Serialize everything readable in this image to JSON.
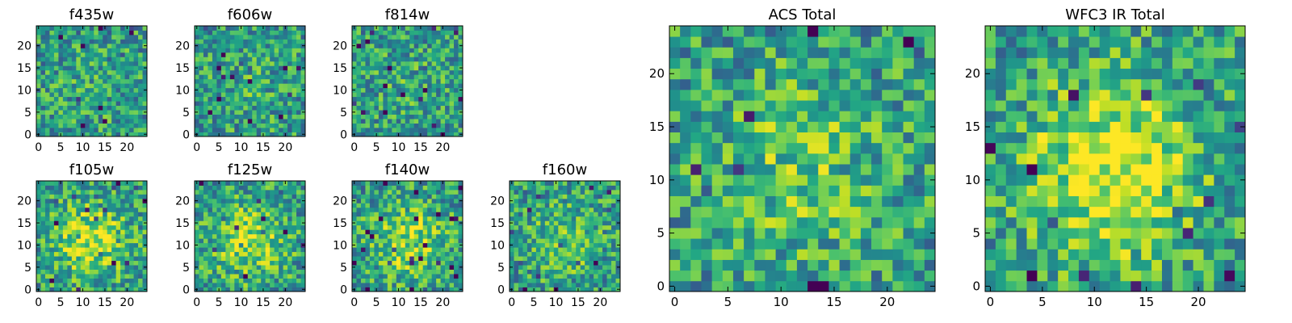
{
  "figure": {
    "colormap": "viridis",
    "panels": [
      {
        "key": "f435w",
        "title": "f435w",
        "size": "small",
        "x_ticks": [
          "0",
          "5",
          "10",
          "15",
          "20"
        ],
        "y_ticks": [
          "0",
          "5",
          "10",
          "15",
          "20"
        ],
        "seed": 11,
        "center_strength": 0.05
      },
      {
        "key": "f606w",
        "title": "f606w",
        "size": "small",
        "x_ticks": [
          "0",
          "5",
          "10",
          "15",
          "20"
        ],
        "y_ticks": [
          "0",
          "5",
          "10",
          "15",
          "20"
        ],
        "seed": 23,
        "center_strength": 0.07
      },
      {
        "key": "f814w",
        "title": "f814w",
        "size": "small",
        "x_ticks": [
          "0",
          "5",
          "10",
          "15",
          "20"
        ],
        "y_ticks": [
          "0",
          "5",
          "10",
          "15",
          "20"
        ],
        "seed": 37,
        "center_strength": 0.06
      },
      {
        "key": "f105w",
        "title": "f105w",
        "size": "small",
        "x_ticks": [
          "0",
          "5",
          "10",
          "15",
          "20"
        ],
        "y_ticks": [
          "0",
          "5",
          "10",
          "15",
          "20"
        ],
        "seed": 41,
        "center_strength": 0.35
      },
      {
        "key": "f125w",
        "title": "f125w",
        "size": "small",
        "x_ticks": [
          "0",
          "5",
          "10",
          "15",
          "20"
        ],
        "y_ticks": [
          "0",
          "5",
          "10",
          "15",
          "20"
        ],
        "seed": 53,
        "center_strength": 0.32
      },
      {
        "key": "f140w",
        "title": "f140w",
        "size": "small",
        "x_ticks": [
          "0",
          "5",
          "10",
          "15",
          "20"
        ],
        "y_ticks": [
          "0",
          "5",
          "10",
          "15",
          "20"
        ],
        "seed": 67,
        "center_strength": 0.3
      },
      {
        "key": "f160w",
        "title": "f160w",
        "size": "small",
        "x_ticks": [
          "0",
          "5",
          "10",
          "15",
          "20"
        ],
        "y_ticks": [
          "0",
          "5",
          "10",
          "15",
          "20"
        ],
        "seed": 79,
        "center_strength": 0.18
      },
      {
        "key": "acs_total",
        "title": "ACS Total",
        "size": "large",
        "x_ticks": [
          "0",
          "5",
          "10",
          "15",
          "20"
        ],
        "y_ticks": [
          "0",
          "5",
          "10",
          "15",
          "20"
        ],
        "seed": 97,
        "center_strength": 0.2
      },
      {
        "key": "wfc3_ir_total",
        "title": "WFC3 IR Total",
        "size": "large",
        "x_ticks": [
          "0",
          "5",
          "10",
          "15",
          "20"
        ],
        "y_ticks": [
          "0",
          "5",
          "10",
          "15",
          "20"
        ],
        "seed": 131,
        "center_strength": 0.45
      }
    ]
  },
  "chart_data": [
    {
      "type": "heatmap",
      "title": "f435w",
      "x_range": [
        0,
        24
      ],
      "y_range": [
        0,
        24
      ],
      "grid_size": [
        25,
        25
      ],
      "colormap": "viridis",
      "grid": false
    },
    {
      "type": "heatmap",
      "title": "f606w",
      "x_range": [
        0,
        24
      ],
      "y_range": [
        0,
        24
      ],
      "grid_size": [
        25,
        25
      ],
      "colormap": "viridis",
      "grid": false
    },
    {
      "type": "heatmap",
      "title": "f814w",
      "x_range": [
        0,
        24
      ],
      "y_range": [
        0,
        24
      ],
      "grid_size": [
        25,
        25
      ],
      "colormap": "viridis",
      "grid": false
    },
    {
      "type": "heatmap",
      "title": "f105w",
      "x_range": [
        0,
        24
      ],
      "y_range": [
        0,
        24
      ],
      "grid_size": [
        25,
        25
      ],
      "colormap": "viridis",
      "grid": false
    },
    {
      "type": "heatmap",
      "title": "f125w",
      "x_range": [
        0,
        24
      ],
      "y_range": [
        0,
        24
      ],
      "grid_size": [
        25,
        25
      ],
      "colormap": "viridis",
      "grid": false
    },
    {
      "type": "heatmap",
      "title": "f140w",
      "x_range": [
        0,
        24
      ],
      "y_range": [
        0,
        24
      ],
      "grid_size": [
        25,
        25
      ],
      "colormap": "viridis",
      "grid": false
    },
    {
      "type": "heatmap",
      "title": "f160w",
      "x_range": [
        0,
        24
      ],
      "y_range": [
        0,
        24
      ],
      "grid_size": [
        25,
        25
      ],
      "colormap": "viridis",
      "grid": false
    },
    {
      "type": "heatmap",
      "title": "ACS Total",
      "x_range": [
        0,
        24
      ],
      "y_range": [
        0,
        24
      ],
      "grid_size": [
        25,
        25
      ],
      "colormap": "viridis",
      "grid": false
    },
    {
      "type": "heatmap",
      "title": "WFC3 IR Total",
      "x_range": [
        0,
        24
      ],
      "y_range": [
        0,
        24
      ],
      "grid_size": [
        25,
        25
      ],
      "colormap": "viridis",
      "grid": false
    }
  ]
}
